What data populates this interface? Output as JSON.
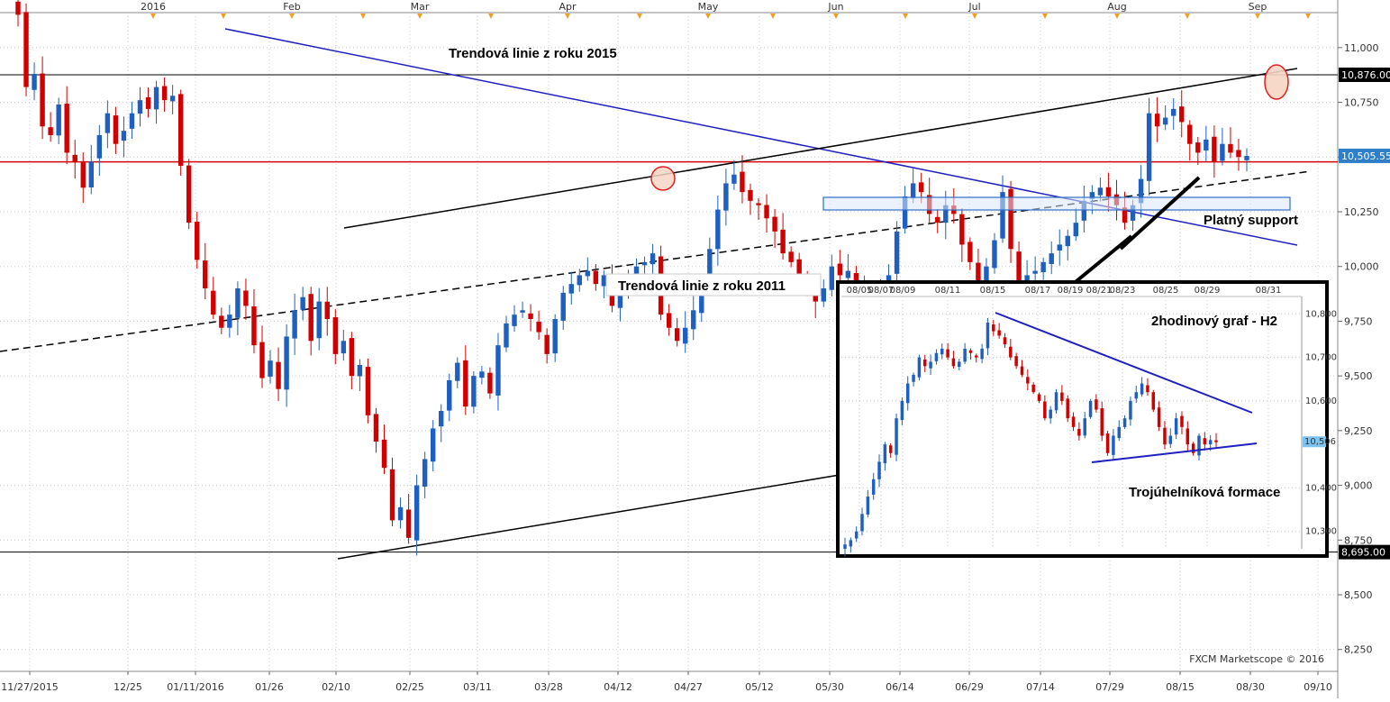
{
  "chart_data": {
    "type": "candlestick",
    "source_note": "FXCM Marketscope © 2016",
    "y_axis": {
      "side": "right",
      "ylim": [
        8150,
        11160
      ],
      "ticks": [
        "11,000",
        "10,750",
        "10,500",
        "10,250",
        "10,000",
        "9,750",
        "9,500",
        "9,250",
        "9,000",
        "8,750",
        "8,500",
        "8,250"
      ],
      "tick_values": [
        11000,
        10750,
        10500,
        10250,
        10000,
        9750,
        9500,
        9250,
        9000,
        8750,
        8500,
        8250
      ]
    },
    "x_axis": {
      "bottom_ticks": [
        "11/27/2015",
        "12/25",
        "01/11/2016",
        "01/26",
        "02/10",
        "02/25",
        "03/11",
        "03/28",
        "04/12",
        "04/27",
        "05/12",
        "05/30",
        "06/14",
        "06/29",
        "07/14",
        "07/29",
        "08/15",
        "08/30",
        "09/10"
      ],
      "top_months": [
        "2016",
        "Feb",
        "Mar",
        "Apr",
        "May",
        "Jun",
        "Jul",
        "Aug",
        "Sep"
      ]
    },
    "price_tags": [
      {
        "label": "10,876.00",
        "value": 10876,
        "color": "#000000"
      },
      {
        "label": "10,505.55",
        "value": 10505.55,
        "color": "#2f7fc8"
      },
      {
        "label": "8,695.00",
        "value": 8695,
        "color": "#000000"
      }
    ],
    "horizontal_lines": [
      {
        "value": 10876,
        "color": "#000000"
      },
      {
        "value": 10478,
        "color": "#d40000"
      },
      {
        "value": 8695,
        "color": "#000000"
      }
    ],
    "annotations": [
      {
        "text": "Trendová linie z roku 2015"
      },
      {
        "text": "Trendová linie z roku 2011"
      },
      {
        "text": "Platný support"
      }
    ],
    "series_close": [
      11150,
      10820,
      10880,
      10640,
      10600,
      10740,
      10520,
      10480,
      10360,
      10480,
      10600,
      10700,
      10560,
      10620,
      10700,
      10760,
      10720,
      10820,
      10760,
      10780,
      10460,
      10200,
      10030,
      9900,
      9780,
      9720,
      9780,
      9900,
      9820,
      9640,
      9490,
      9570,
      9440,
      9680,
      9800,
      9860,
      9660,
      9840,
      9760,
      9600,
      9660,
      9500,
      9550,
      9320,
      9200,
      9080,
      8840,
      8900,
      8760,
      9000,
      9120,
      9260,
      9340,
      9480,
      9560,
      9360,
      9500,
      9520,
      9420,
      9640,
      9740,
      9780,
      9800,
      9760,
      9700,
      9600,
      9760,
      9880,
      9920,
      9960,
      9980,
      9920,
      9960,
      9820,
      9880,
      9960,
      10000,
      10020,
      10060,
      9780,
      9720,
      9660,
      9720,
      9800,
      9920,
      10080,
      10260,
      10380,
      10420,
      10340,
      10300,
      10280,
      10220,
      10160,
      10060,
      10020,
      9940,
      9900,
      9840,
      9900,
      10000,
      9960,
      9980,
      9880,
      9900,
      9860,
      9920,
      9960,
      10160,
      10320,
      10380,
      10340,
      10240,
      10200,
      10280,
      10240,
      10100,
      10020,
      9900,
      10000,
      10120,
      10340,
      10080,
      9920,
      9960,
      9980,
      10020,
      10060,
      10100,
      10140,
      10200,
      10300,
      10340,
      10360,
      10320,
      10280,
      10200,
      10280,
      10400,
      10700,
      10640,
      10680,
      10720,
      10660,
      10560,
      10520,
      10580,
      10480,
      10560,
      10520,
      10500,
      10505
    ]
  },
  "inset": {
    "title": "2hodinový graf - H2",
    "pattern_label": "Trojúhelníková formace",
    "x_ticks": [
      "08/05",
      "08/07",
      "08/09",
      "08/11",
      "08/15",
      "08/17",
      "08/19",
      "08/21",
      "08/23",
      "08/25",
      "08/29",
      "08/31"
    ],
    "y_ticks": [
      "10,800",
      "10,700",
      "10,600",
      "10,506",
      "10,400",
      "10,300"
    ],
    "y_tick_values": [
      10800,
      10700,
      10600,
      10506,
      10400,
      10300
    ],
    "ylim": [
      10260,
      10840
    ],
    "current_tag": "10,506",
    "series_close": [
      10270,
      10280,
      10300,
      10340,
      10380,
      10420,
      10460,
      10500,
      10480,
      10560,
      10600,
      10640,
      10660,
      10700,
      10680,
      10690,
      10710,
      10720,
      10700,
      10680,
      10690,
      10720,
      10710,
      10700,
      10720,
      10780,
      10760,
      10750,
      10730,
      10700,
      10680,
      10660,
      10640,
      10620,
      10600,
      10560,
      10580,
      10620,
      10600,
      10560,
      10540,
      10520,
      10560,
      10600,
      10580,
      10520,
      10480,
      10520,
      10540,
      10560,
      10600,
      10620,
      10640,
      10620,
      10580,
      10540,
      10500,
      10520,
      10560,
      10540,
      10500,
      10480,
      10520,
      10500,
      10510,
      10505
    ]
  },
  "colors": {
    "bull": "#1f5fbf",
    "bear": "#d00000",
    "grid": "#c8c8c8",
    "red_line": "#d40000",
    "blue_trend": "#1f1fbf",
    "black": "#000000",
    "highlight_fill": "#f6d5c3",
    "highlight_stroke": "#e02020",
    "support_fill": "#dbe8f7",
    "support_stroke": "#2f6fc8",
    "marker": "#f0a020"
  }
}
